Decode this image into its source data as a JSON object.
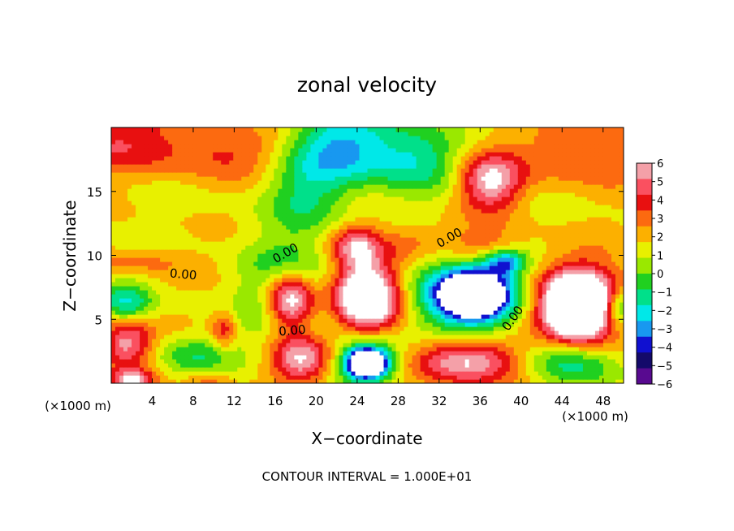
{
  "chart_data": {
    "type": "heatmap",
    "title": "zonal velocity",
    "xlabel": "X−coordinate",
    "ylabel": "Z−coordinate",
    "x_unit_left": "(×1000 m)",
    "x_unit_right": "(×1000 m)",
    "footer": "CONTOUR INTERVAL = 1.000E+01",
    "xlim": [
      0,
      50
    ],
    "ylim": [
      0,
      20
    ],
    "x_ticks": [
      4,
      8,
      12,
      16,
      20,
      24,
      28,
      32,
      36,
      40,
      44,
      48
    ],
    "y_ticks": [
      5,
      10,
      15
    ],
    "colorbar": {
      "levels": [
        6,
        5,
        4,
        3,
        2,
        1,
        0,
        -1,
        -2,
        -3,
        -4,
        -5,
        -6
      ],
      "labels": [
        "6",
        "5",
        "4",
        "3",
        "2",
        "1",
        "0",
        "−1",
        "−2",
        "−3",
        "−4",
        "−5",
        "−6"
      ],
      "colors": [
        "#f4a0a8",
        "#fa5060",
        "#e81010",
        "#fc6a10",
        "#fcb000",
        "#e8f000",
        "#9ae800",
        "#20d020",
        "#00e08a",
        "#00e8e8",
        "#1898f0",
        "#1010d0",
        "#140a6a",
        "#580a90"
      ]
    },
    "contour_labels": [
      {
        "text": "0.00",
        "x": 7.0,
        "z": 8.2,
        "rotate": 5
      },
      {
        "text": "0.00",
        "x": 17.2,
        "z": 9.9,
        "rotate": -30
      },
      {
        "text": "0.00",
        "x": 33.2,
        "z": 11.1,
        "rotate": -30
      },
      {
        "text": "0.00",
        "x": 17.7,
        "z": 3.8,
        "rotate": -5
      },
      {
        "text": "0.00",
        "x": 39.5,
        "z": 4.9,
        "rotate": -55
      }
    ],
    "features": [
      {
        "x": 0,
        "z": 19,
        "rx": 9,
        "rz": 2.5,
        "v": 3
      },
      {
        "x": 12,
        "z": 18,
        "rx": 6,
        "rz": 2,
        "v": 2
      },
      {
        "x": 23,
        "z": 18.5,
        "rx": 5.5,
        "rz": 3,
        "v": -5
      },
      {
        "x": 19,
        "z": 15,
        "rx": 4,
        "rz": 3,
        "v": -2.5
      },
      {
        "x": 30,
        "z": 17.5,
        "rx": 4,
        "rz": 2.5,
        "v": -3
      },
      {
        "x": 37,
        "z": 15.8,
        "rx": 3,
        "rz": 2.2,
        "v": 5.5
      },
      {
        "x": 46,
        "z": 18,
        "rx": 6,
        "rz": 2.5,
        "v": 2.5
      },
      {
        "x": 24,
        "z": 10.8,
        "rx": 2.3,
        "rz": 1.5,
        "v": 4.5
      },
      {
        "x": 29,
        "z": 11,
        "rx": 3,
        "rz": 1.5,
        "v": 2
      },
      {
        "x": 36,
        "z": 10.8,
        "rx": 4,
        "rz": 1.5,
        "v": 2.5
      },
      {
        "x": 3,
        "z": 9.5,
        "rx": 5,
        "rz": 1,
        "v": 1.5
      },
      {
        "x": 38.5,
        "z": 9.5,
        "rx": 2,
        "rz": 1,
        "v": -5
      },
      {
        "x": 17.5,
        "z": 6.8,
        "rx": 4,
        "rz": 4,
        "v": -5
      },
      {
        "x": 17.5,
        "z": 6.5,
        "rx": 2.5,
        "rz": 2.3,
        "v": 10
      },
      {
        "x": 25,
        "z": 6.8,
        "rx": 3.3,
        "rz": 2.7,
        "v": 10
      },
      {
        "x": 34,
        "z": 6.8,
        "rx": 5.5,
        "rz": 3.2,
        "v": -5
      },
      {
        "x": 35.5,
        "z": 7,
        "rx": 3.2,
        "rz": 1.8,
        "v": -10
      },
      {
        "x": 46,
        "z": 6,
        "rx": 5,
        "rz": 3.5,
        "v": 5
      },
      {
        "x": 45.5,
        "z": 6,
        "rx": 2.8,
        "rz": 2.2,
        "v": 10
      },
      {
        "x": 49.5,
        "z": 6,
        "rx": 1.5,
        "rz": 1.5,
        "v": -5
      },
      {
        "x": 1.5,
        "z": 6.2,
        "rx": 2.5,
        "rz": 1.5,
        "v": -4
      },
      {
        "x": 11,
        "z": 4.2,
        "rx": 1.2,
        "rz": 1.5,
        "v": 3
      },
      {
        "x": 1.5,
        "z": 3.2,
        "rx": 2.5,
        "rz": 2,
        "v": 5
      },
      {
        "x": 8,
        "z": 2.2,
        "rx": 4,
        "rz": 1.5,
        "v": -2.5
      },
      {
        "x": 18.5,
        "z": 2,
        "rx": 3,
        "rz": 2,
        "v": 6
      },
      {
        "x": 25,
        "z": 1.8,
        "rx": 3,
        "rz": 1.8,
        "v": -5
      },
      {
        "x": 25,
        "z": 1.6,
        "rx": 1.8,
        "rz": 1,
        "v": -10
      },
      {
        "x": 35,
        "z": 1.8,
        "rx": 5,
        "rz": 1.8,
        "v": 6
      },
      {
        "x": 44.5,
        "z": 1.8,
        "rx": 4.5,
        "rz": 2,
        "v": -4
      },
      {
        "x": 2,
        "z": 0.3,
        "rx": 2,
        "rz": 0.8,
        "v": 5
      },
      {
        "x": 9.5,
        "z": 0.3,
        "rx": 2,
        "rz": 0.8,
        "v": 2
      }
    ]
  }
}
